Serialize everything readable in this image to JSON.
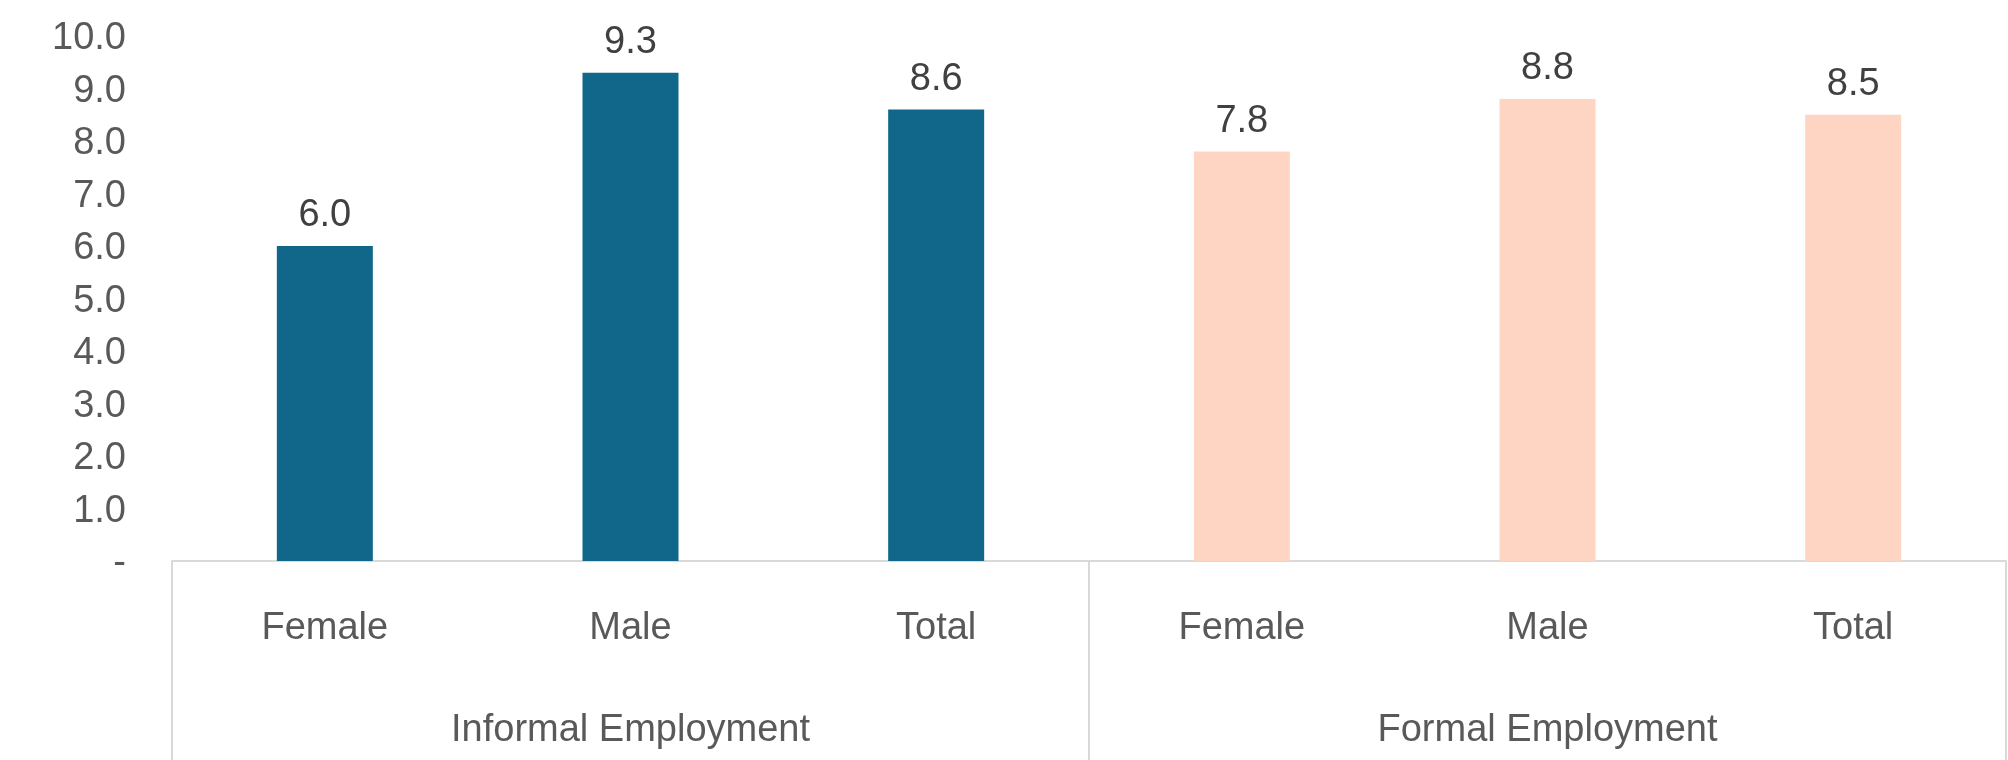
{
  "chart_data": {
    "type": "bar",
    "categories": [
      "Female",
      "Male",
      "Total",
      "Female",
      "Male",
      "Total"
    ],
    "values": [
      6.0,
      9.3,
      8.6,
      7.8,
      8.8,
      8.5
    ],
    "colors": [
      "#10678a",
      "#10678a",
      "#10678a",
      "#fdd5c2",
      "#fdd5c2",
      "#fdd5c2"
    ],
    "value_labels": [
      "6.0",
      "9.3",
      "8.6",
      "7.8",
      "8.8",
      "8.5"
    ],
    "annotations": [
      "Informal Employment",
      "Formal Employment"
    ],
    "ylim": [
      0,
      10
    ],
    "yticks": [
      {
        "value": 0,
        "label": "-"
      },
      {
        "value": 1,
        "label": "1.0"
      },
      {
        "value": 2,
        "label": "2.0"
      },
      {
        "value": 3,
        "label": "3.0"
      },
      {
        "value": 4,
        "label": "4.0"
      },
      {
        "value": 5,
        "label": "5.0"
      },
      {
        "value": 6,
        "label": "6.0"
      },
      {
        "value": 7,
        "label": "7.0"
      },
      {
        "value": 8,
        "label": "8.0"
      },
      {
        "value": 9,
        "label": "9.0"
      },
      {
        "value": 10,
        "label": "10.0"
      }
    ],
    "grid": false
  }
}
